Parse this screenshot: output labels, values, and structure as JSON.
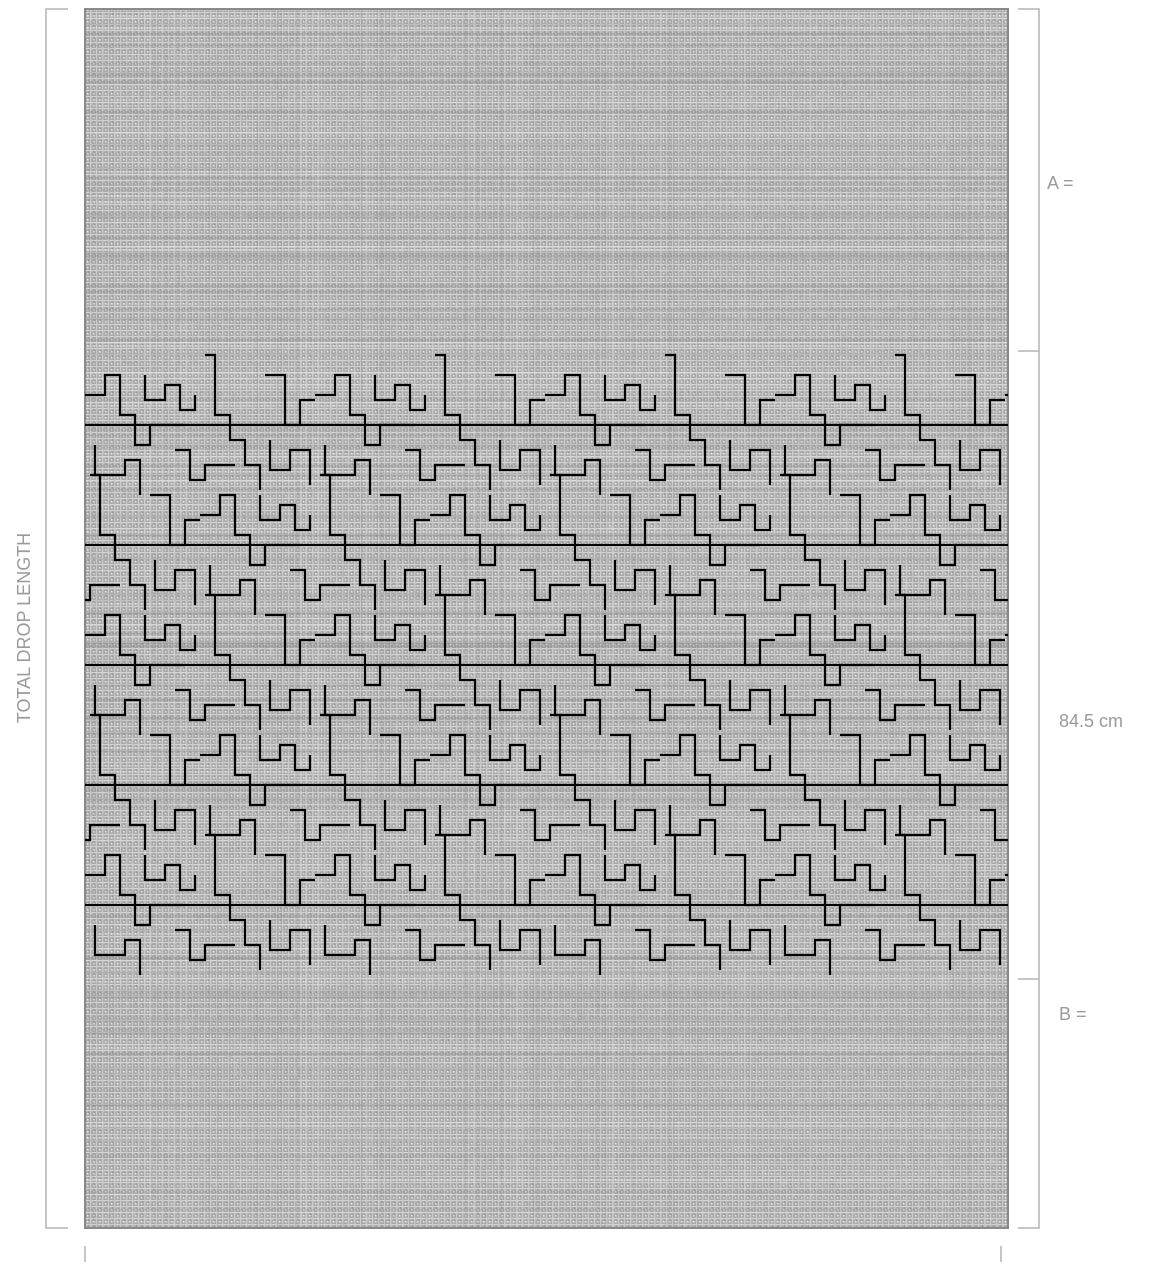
{
  "labels": {
    "total_drop_length": "TOTAL DROP LENGTH",
    "section_a": "A =",
    "pattern_height": "84.5 cm",
    "section_b": "B ="
  },
  "colors": {
    "fabric_base": "#a9a9a9",
    "fabric_light": "#e8e8e8",
    "fabric_dark": "#6e6e6e",
    "motif_line": "#000000",
    "dimension_line": "#b3b3b3",
    "label_text": "#9a9a9a"
  }
}
